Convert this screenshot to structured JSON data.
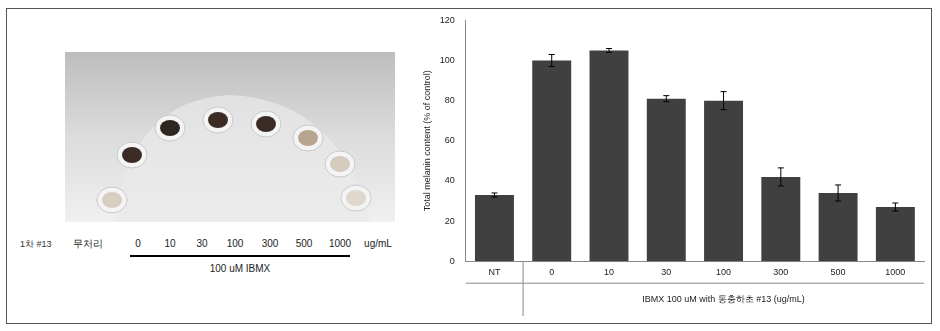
{
  "chart_data": {
    "type": "bar",
    "y_label": "Total melanin content (% of control)",
    "x_label": "IBMX 100 uM with 동충하초 #13 (ug/mL)",
    "categories": [
      "NT",
      "0",
      "10",
      "30",
      "100",
      "300",
      "500",
      "1000"
    ],
    "values": [
      33,
      100,
      105,
      81,
      80,
      42,
      34,
      27
    ],
    "errors": [
      1,
      3,
      1,
      1.5,
      4.5,
      4.5,
      4,
      2
    ],
    "color": "#404040",
    "ylim": [
      0,
      120
    ],
    "yticks": [
      0,
      20,
      40,
      60,
      80,
      100,
      120
    ],
    "grid": false
  },
  "photo": {
    "sample": "1차 #13",
    "lane_labels": [
      "무처리",
      "0",
      "10",
      "30",
      "100",
      "300",
      "500",
      "1000"
    ],
    "unit": "ug/mL",
    "treatment": "100 uM IBMX"
  }
}
